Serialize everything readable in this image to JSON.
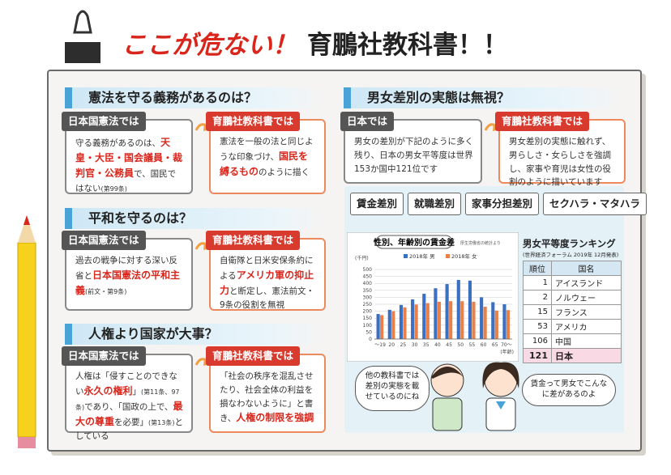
{
  "header": {
    "title_red": "ここが危ない！",
    "title_black": "育鵬社教科書！！"
  },
  "sections": [
    {
      "heading": "憲法を守る義務があるのは？",
      "left": {
        "label": "日本国憲法では",
        "text": [
          {
            "text": "守る義務があるのは、"
          },
          {
            "text": "天皇・大臣・国会議員・裁判官・公務員",
            "style": "em"
          },
          {
            "text": "で、国民ではない"
          },
          {
            "text": "(第99条)",
            "style": "small"
          }
        ]
      },
      "right": {
        "label": "育鵬社教科書では",
        "text": [
          {
            "text": "憲法を一般の法と同じような印象づけ、"
          },
          {
            "text": "国民を縛るもの",
            "style": "em"
          },
          {
            "text": "のように描く"
          }
        ]
      }
    },
    {
      "heading": "平和を守るのは？",
      "left": {
        "label": "日本国憲法では",
        "text": [
          {
            "text": "過去の戦争に対する深い反省と"
          },
          {
            "text": "日本国憲法の平和主義",
            "style": "em"
          },
          {
            "text": "(前文・第9条)",
            "style": "small"
          }
        ]
      },
      "right": {
        "label": "育鵬社教科書では",
        "text": [
          {
            "text": "自衛隊と日米安保条約による"
          },
          {
            "text": "アメリカ軍の抑止力",
            "style": "em"
          },
          {
            "text": "と断定し、憲法前文・9条の役割を無視"
          }
        ]
      }
    },
    {
      "heading": "人権より国家が大事？",
      "left": {
        "label": "日本国憲法では",
        "text": [
          {
            "text": "人権は「侵すことのできない"
          },
          {
            "text": "永久の権利",
            "style": "em"
          },
          {
            "text": "」"
          },
          {
            "text": "(第11条、97条)",
            "style": "small"
          },
          {
            "text": "であり、「国政の上で、"
          },
          {
            "text": "最大の尊重",
            "style": "em"
          },
          {
            "text": "を必要」"
          },
          {
            "text": "(第13条)",
            "style": "small"
          },
          {
            "text": "としている"
          }
        ]
      },
      "right": {
        "label": "育鵬社教科書では",
        "text": [
          {
            "text": "「社会の秩序を混乱させたり、社会全体の利益を損なわないように」と書き、"
          },
          {
            "text": "人権の制限を強調",
            "style": "em"
          }
        ]
      }
    },
    {
      "heading": "男女差別の実態は無視？",
      "left": {
        "label": "日本では",
        "text": [
          {
            "text": "男女の差別が下記のように多く残り、日本の男女平等度は世界153か国中121位です"
          }
        ]
      },
      "right": {
        "label": "育鵬社教科書では",
        "text": [
          {
            "text": "男女差別の実態に触れず、男らしさ・女らしさを強調し、家事や育児は女性の役割のように描いています"
          }
        ]
      }
    }
  ],
  "tags": [
    "賃金差別",
    "就職差別",
    "家事分担差別",
    "セクハラ・マタハラ"
  ],
  "chart_data": {
    "type": "bar",
    "title": "性別、年齢別の賃金差",
    "source": "厚生労働省の統計より",
    "y_label": "(千円)",
    "x_label": "(年齢)",
    "categories": [
      "～19",
      "20",
      "25",
      "30",
      "35",
      "40",
      "45",
      "50",
      "55",
      "60",
      "65",
      "70～"
    ],
    "series": [
      {
        "name": "2018年 男",
        "color": "#3b6fc2",
        "values": [
          180,
          210,
          245,
          285,
          325,
          365,
          395,
          425,
          420,
          300,
          265,
          250
        ]
      },
      {
        "name": "2018年 女",
        "color": "#e8804a",
        "values": [
          172,
          200,
          228,
          248,
          258,
          268,
          272,
          272,
          268,
          232,
          205,
          208
        ]
      }
    ],
    "ylim": [
      0,
      500
    ],
    "yticks": [
      0,
      50,
      100,
      150,
      200,
      250,
      300,
      350,
      400,
      450,
      500
    ],
    "grid": true
  },
  "ranking": {
    "title": "男女平等度ランキング",
    "subtitle": "(世界経済フォーラム 2019年 12月発表)",
    "headers": [
      "順位",
      "国名"
    ],
    "rows": [
      [
        "1",
        "アイスランド"
      ],
      [
        "2",
        "ノルウェー"
      ],
      [
        "15",
        "フランス"
      ],
      [
        "53",
        "アメリカ"
      ],
      [
        "106",
        "中国"
      ],
      [
        "121",
        "日本"
      ]
    ]
  },
  "bubbles": [
    "他の教科書では差別の実態を載せているのにね",
    "賃金って男女でこんなに差があるのよ"
  ]
}
